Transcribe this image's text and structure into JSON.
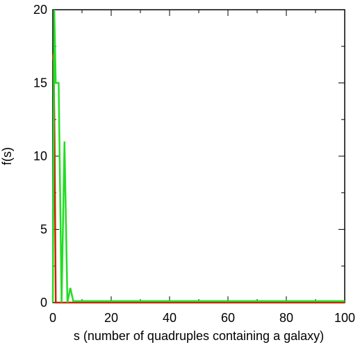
{
  "chart_data": {
    "type": "line",
    "title": "",
    "xlabel": "s (number of quadruples containing a galaxy)",
    "ylabel": "f(s)",
    "xlim": [
      0,
      100
    ],
    "ylim": [
      0,
      20
    ],
    "xticks": [
      0,
      20,
      40,
      60,
      80,
      100
    ],
    "yticks": [
      0,
      5,
      10,
      15,
      20
    ],
    "grid": false,
    "legend": "none",
    "series": [
      {
        "color": "#cc2200",
        "x": [
          0,
          0.3,
          0.6,
          1,
          2,
          3,
          4,
          5,
          6,
          7,
          8,
          100
        ],
        "y": [
          17,
          16.5,
          11,
          0,
          0,
          0,
          0,
          0,
          0,
          0,
          0,
          0
        ]
      },
      {
        "color": "#22dd22",
        "x": [
          0,
          0.5,
          1,
          1.5,
          2,
          3,
          4,
          5,
          6,
          7,
          8,
          100
        ],
        "y": [
          0,
          20,
          15,
          15,
          15,
          0,
          11,
          0,
          1,
          0.1,
          0.1,
          0.1
        ]
      }
    ]
  }
}
